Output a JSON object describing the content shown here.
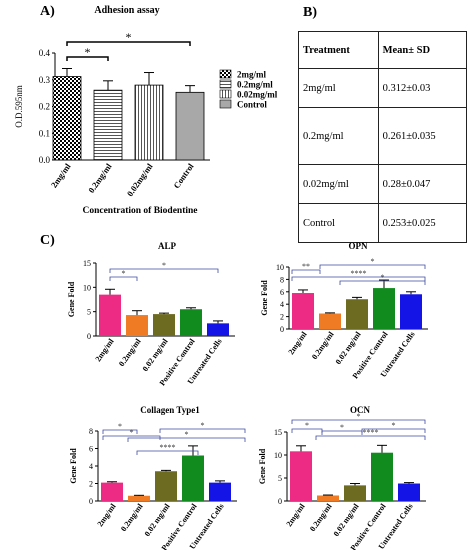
{
  "panel_labels": {
    "a": "A)",
    "b": "B)",
    "c": "C)"
  },
  "table": {
    "headers": [
      "Treatment",
      "Mean± SD"
    ],
    "rows": [
      [
        "2mg/ml",
        "0.312±0.03"
      ],
      [
        "0.2mg/ml",
        "0.261±0.035"
      ],
      [
        "0.02mg/ml",
        "0.28±0.047"
      ],
      [
        "Control",
        "0.253±0.025"
      ]
    ]
  },
  "chart_data": [
    {
      "id": "adhesion",
      "type": "bar",
      "title": "Adhesion assay",
      "xlabel": "Concentration of Biodentine",
      "ylabel": "O.D.595nm",
      "categories": [
        "2mg/ml",
        "0.2mg/ml",
        "0.02mg/ml",
        "Control"
      ],
      "values": [
        0.312,
        0.261,
        0.28,
        0.253
      ],
      "errors": [
        0.03,
        0.035,
        0.047,
        0.025
      ],
      "ylim": [
        0,
        0.4
      ],
      "yticks": [
        "0.0",
        "0.1",
        "0.2",
        "0.3",
        "0.4"
      ],
      "legend": [
        "2mg/ml",
        "0.2mg/ml",
        "0.02mg/ml",
        "Control"
      ],
      "legend_position": "right",
      "fills": [
        "checker",
        "hstripe",
        "vstripe",
        "grey"
      ],
      "significance": [
        {
          "from": 0,
          "to": 1,
          "label": "*"
        },
        {
          "from": 0,
          "to": 3,
          "label": "*"
        }
      ]
    },
    {
      "id": "alp",
      "type": "bar",
      "title": "ALP",
      "ylabel": "Gene Fold",
      "categories": [
        "2mg/ml",
        "0.2mg/ml",
        "0.02 mg/ml",
        "Positive Control",
        "Untreated Cells"
      ],
      "values": [
        8.5,
        4.3,
        4.5,
        5.5,
        2.6
      ],
      "errors": [
        1.1,
        0.9,
        0.2,
        0.3,
        0.5
      ],
      "ylim": [
        0,
        15
      ],
      "yticks": [
        "0",
        "5",
        "10",
        "15"
      ],
      "colors": [
        "#ee2b84",
        "#f07b25",
        "#6d6a21",
        "#128b1e",
        "#1414e6"
      ],
      "significance": [
        {
          "from": 0,
          "to": 1,
          "label": "*"
        },
        {
          "from": 0,
          "to": 4,
          "label": "*"
        }
      ]
    },
    {
      "id": "opn",
      "type": "bar",
      "title": "OPN",
      "ylabel": "Gene Fold",
      "categories": [
        "2mg/ml",
        "0.2mg/ml",
        "0.02 mg/ml",
        "Positive Control",
        "Untreated Cells"
      ],
      "values": [
        5.8,
        2.5,
        4.8,
        6.6,
        5.6
      ],
      "errors": [
        0.5,
        0.1,
        0.3,
        1.3,
        0.4
      ],
      "ylim": [
        0,
        10
      ],
      "yticks": [
        "0",
        "2",
        "4",
        "6",
        "8",
        "10"
      ],
      "colors": [
        "#ee2b84",
        "#f07b25",
        "#6d6a21",
        "#128b1e",
        "#1414e6"
      ],
      "significance": [
        {
          "from": 0,
          "to": 1,
          "label": "**"
        },
        {
          "from": 0,
          "to": 4,
          "label": "****"
        },
        {
          "from": 1,
          "to": 4,
          "label": "*"
        },
        {
          "from": 1,
          "to": 4,
          "label": "*"
        }
      ]
    },
    {
      "id": "col1",
      "type": "bar",
      "title": "Collagen Type1",
      "ylabel": "Gene Fold",
      "categories": [
        "2mg/ml",
        "0.2mg/ml",
        "0.02 mg/ml",
        "Positive Control",
        "Untreated Cells"
      ],
      "values": [
        2.1,
        0.6,
        3.4,
        5.2,
        2.1
      ],
      "errors": [
        0.1,
        0.05,
        0.1,
        1.1,
        0.2
      ],
      "ylim": [
        0,
        8
      ],
      "yticks": [
        "0",
        "2",
        "4",
        "6",
        "8"
      ],
      "colors": [
        "#ee2b84",
        "#f07b25",
        "#6d6a21",
        "#128b1e",
        "#1414e6"
      ],
      "significance": [
        {
          "from": 0,
          "to": 1,
          "label": "*"
        },
        {
          "from": 1,
          "to": 4,
          "label": "*"
        },
        {
          "from": 0,
          "to": 2,
          "label": "*"
        },
        {
          "from": 2,
          "to": 4,
          "label": "*"
        },
        {
          "from": 1,
          "to": 3,
          "label": "****"
        }
      ]
    },
    {
      "id": "ocn",
      "type": "bar",
      "title": "OCN",
      "ylabel": "Gene Fold",
      "categories": [
        "2mg/ml",
        "0.2mg/ml",
        "0.02 mg/ml",
        "Positive Control",
        "Untreated Cells"
      ],
      "values": [
        10.8,
        1.2,
        3.4,
        10.5,
        3.8
      ],
      "errors": [
        1.2,
        0.1,
        0.4,
        1.6,
        0.2
      ],
      "ylim": [
        0,
        15
      ],
      "yticks": [
        "0",
        "5",
        "10",
        "15"
      ],
      "colors": [
        "#ee2b84",
        "#f07b25",
        "#6d6a21",
        "#128b1e",
        "#1414e6"
      ],
      "significance": [
        {
          "from": 0,
          "to": 4,
          "label": "*"
        },
        {
          "from": 0,
          "to": 1,
          "label": "*"
        },
        {
          "from": 1,
          "to": 4,
          "label": "****"
        },
        {
          "from": 1,
          "to": 2,
          "label": "*"
        },
        {
          "from": 2,
          "to": 4,
          "label": "*"
        }
      ]
    }
  ]
}
